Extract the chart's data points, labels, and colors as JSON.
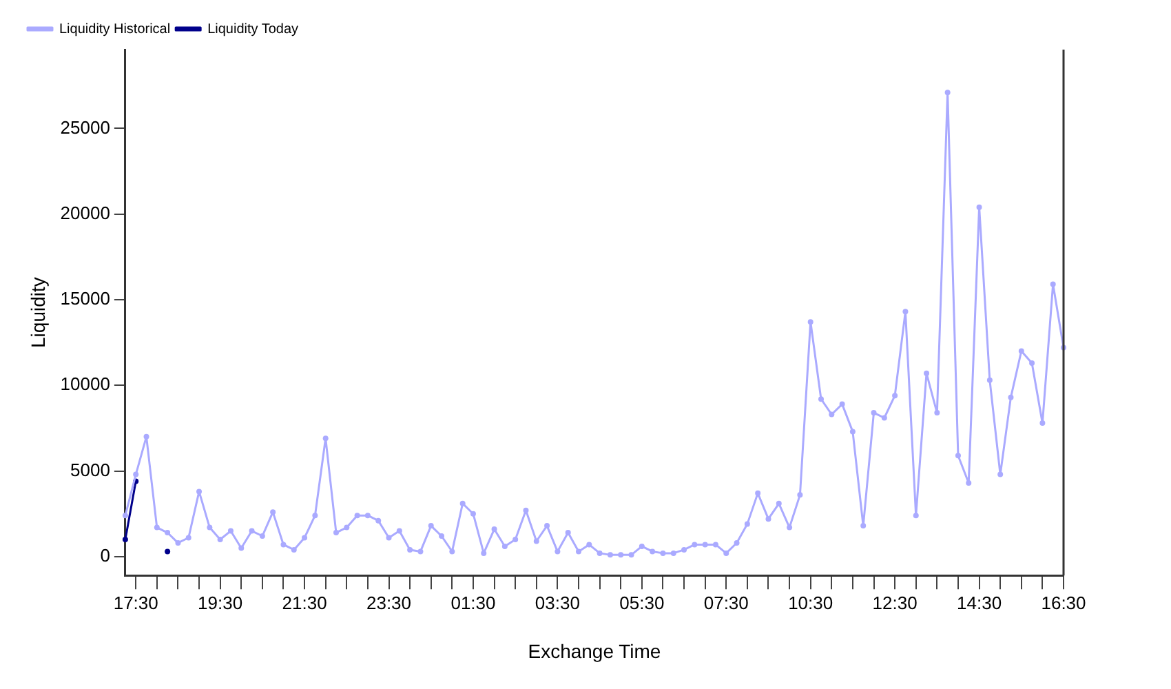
{
  "chart_data": {
    "type": "line",
    "xlabel": "Exchange Time",
    "ylabel": "Liquidity",
    "categories": [
      null,
      "17:30",
      null,
      null,
      null,
      null,
      null,
      null,
      null,
      "19:30",
      null,
      null,
      null,
      null,
      null,
      null,
      null,
      "21:30",
      null,
      null,
      null,
      null,
      null,
      null,
      null,
      "23:30",
      null,
      null,
      null,
      null,
      null,
      null,
      null,
      "01:30",
      null,
      null,
      null,
      null,
      null,
      null,
      null,
      "03:30",
      null,
      null,
      null,
      null,
      null,
      null,
      null,
      "05:30",
      null,
      null,
      null,
      null,
      null,
      null,
      null,
      "07:30",
      null,
      null,
      null,
      null,
      null,
      null,
      null,
      "10:30",
      null,
      null,
      null,
      null,
      null,
      null,
      null,
      "12:30",
      null,
      null,
      null,
      null,
      null,
      null,
      null,
      "14:30",
      null,
      null,
      null,
      null,
      null,
      null,
      null,
      "16:30"
    ],
    "series": [
      {
        "name": "Liquidity Historical",
        "color": "#aaaaff",
        "values": [
          2400,
          4800,
          7000,
          1700,
          1400,
          800,
          1100,
          3800,
          1700,
          1000,
          1500,
          500,
          1500,
          1200,
          2600,
          700,
          400,
          1100,
          2400,
          6900,
          1400,
          1700,
          2400,
          2400,
          2100,
          1100,
          1500,
          400,
          300,
          1800,
          1200,
          300,
          3100,
          2500,
          200,
          1600,
          600,
          1000,
          2700,
          900,
          1800,
          300,
          1400,
          300,
          700,
          200,
          100,
          100,
          100,
          600,
          300,
          200,
          200,
          400,
          700,
          700,
          700,
          200,
          800,
          1900,
          3700,
          2200,
          3100,
          1700,
          3600,
          13700,
          9200,
          8300,
          8900,
          7300,
          1800,
          8400,
          8100,
          9400,
          14300,
          2400,
          10700,
          8400,
          27100,
          5900,
          4300,
          20400,
          10300,
          4800,
          9300,
          12000,
          11300,
          7800,
          15900,
          12200
        ]
      },
      {
        "name": "Liquidity Today",
        "color": "#00008b",
        "values": [
          1000,
          4400,
          null,
          null,
          300,
          null,
          null,
          null,
          null,
          null,
          null,
          null,
          null,
          null,
          null,
          null,
          null,
          null,
          null,
          null,
          null,
          null,
          null,
          null,
          null,
          null,
          null,
          null,
          null,
          null,
          null,
          null,
          null,
          null,
          null,
          null,
          null,
          null,
          null,
          null,
          null,
          null,
          null,
          null,
          null,
          null,
          null,
          null,
          null,
          null,
          null,
          null,
          null,
          null,
          null,
          null,
          null,
          null,
          null,
          null,
          null,
          null,
          null,
          null,
          null,
          null,
          null,
          null,
          null,
          null,
          null,
          null,
          null,
          null,
          null,
          null,
          null,
          null,
          null,
          null,
          null,
          null,
          null,
          null,
          null,
          null,
          null,
          null,
          null,
          null
        ]
      }
    ],
    "ylim": [
      -1100,
      29600
    ],
    "yticks": [
      0,
      5000,
      10000,
      15000,
      20000,
      25000
    ],
    "grid": false,
    "legend": "top left",
    "marker": "circle",
    "line_style": "solid"
  }
}
